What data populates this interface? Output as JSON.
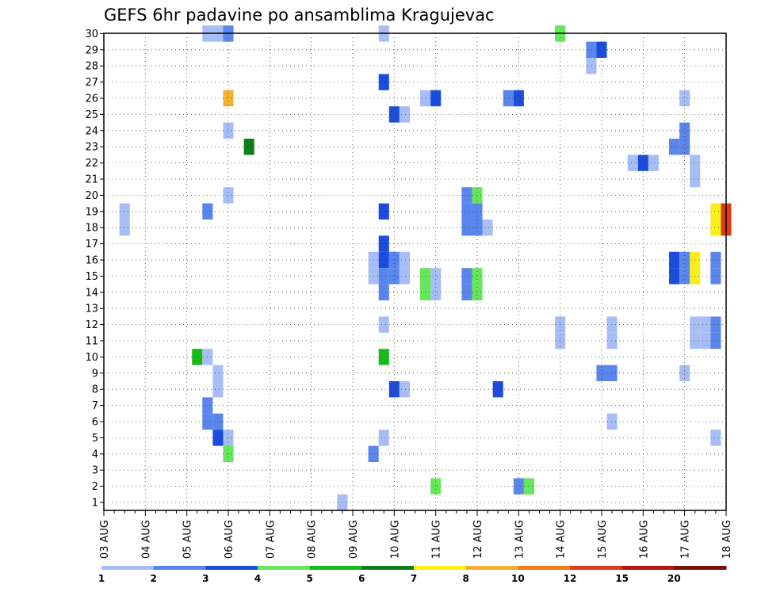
{
  "chart_data": {
    "type": "heatmap",
    "title": "GEFS 6hr padavine po ansamblima Kragujevac",
    "xlabel": "",
    "ylabel": "",
    "x_unit": "6-hour step",
    "x_start": "2024-08-03T00:00",
    "x_end": "2024-08-18T00:00",
    "x_ticks": [
      {
        "step": 0,
        "label": "03 AUG"
      },
      {
        "step": 4,
        "label": "04 AUG"
      },
      {
        "step": 8,
        "label": "05 AUG"
      },
      {
        "step": 12,
        "label": "06 AUG"
      },
      {
        "step": 16,
        "label": "07 AUG"
      },
      {
        "step": 20,
        "label": "08 AUG"
      },
      {
        "step": 24,
        "label": "09 AUG"
      },
      {
        "step": 28,
        "label": "10 AUG"
      },
      {
        "step": 32,
        "label": "11 AUG"
      },
      {
        "step": 36,
        "label": "12 AUG"
      },
      {
        "step": 40,
        "label": "13 AUG"
      },
      {
        "step": 44,
        "label": "14 AUG"
      },
      {
        "step": 48,
        "label": "15 AUG"
      },
      {
        "step": 52,
        "label": "16 AUG"
      },
      {
        "step": 56,
        "label": "17 AUG"
      },
      {
        "step": 60,
        "label": "18 AUG"
      }
    ],
    "y_range": [
      1,
      30
    ],
    "y_ticks": [
      "1",
      "2",
      "3",
      "4",
      "5",
      "6",
      "7",
      "8",
      "9",
      "10",
      "11",
      "12",
      "13",
      "14",
      "15",
      "16",
      "17",
      "18",
      "19",
      "20",
      "21",
      "22",
      "23",
      "24",
      "25",
      "26",
      "27",
      "28",
      "29",
      "30"
    ],
    "grid": true,
    "legend": {
      "placement": "bottom",
      "labels": [
        "1",
        "2",
        "3",
        "4",
        "5",
        "6",
        "7",
        "8",
        "10",
        "12",
        "15",
        "20"
      ],
      "colors": [
        "#a6bdf5",
        "#5a85ec",
        "#1b4cdc",
        "#66e65a",
        "#17b91b",
        "#0d7d1a",
        "#f7ee1a",
        "#f6b02c",
        "#f07d18",
        "#dc3c14",
        "#b2170d",
        "#75120c"
      ]
    },
    "color_scale": [
      {
        "class": 1,
        "color": "#a6bdf5"
      },
      {
        "class": 2,
        "color": "#5a85ec"
      },
      {
        "class": 3,
        "color": "#1b4cdc"
      },
      {
        "class": 4,
        "color": "#66e65a"
      },
      {
        "class": 5,
        "color": "#17b91b"
      },
      {
        "class": 6,
        "color": "#0d7d1a"
      },
      {
        "class": 7,
        "color": "#f7ee1a"
      },
      {
        "class": 8,
        "color": "#f6b02c"
      },
      {
        "class": 9,
        "color": "#f07d18"
      },
      {
        "class": 10,
        "color": "#dc3c14"
      },
      {
        "class": 11,
        "color": "#b2170d"
      }
    ],
    "cells": [
      {
        "step": 10,
        "member": 30,
        "class": 1
      },
      {
        "step": 11,
        "member": 30,
        "class": 1
      },
      {
        "step": 12,
        "member": 30,
        "class": 2
      },
      {
        "step": 27,
        "member": 30,
        "class": 1
      },
      {
        "step": 44,
        "member": 30,
        "class": 4
      },
      {
        "step": 47,
        "member": 29,
        "class": 2
      },
      {
        "step": 48,
        "member": 29,
        "class": 3
      },
      {
        "step": 47,
        "member": 28,
        "class": 1
      },
      {
        "step": 27,
        "member": 27,
        "class": 3
      },
      {
        "step": 12,
        "member": 26,
        "class": 8
      },
      {
        "step": 31,
        "member": 26,
        "class": 1
      },
      {
        "step": 32,
        "member": 26,
        "class": 3
      },
      {
        "step": 39,
        "member": 26,
        "class": 2
      },
      {
        "step": 40,
        "member": 26,
        "class": 3
      },
      {
        "step": 56,
        "member": 26,
        "class": 1
      },
      {
        "step": 28,
        "member": 25,
        "class": 3
      },
      {
        "step": 29,
        "member": 25,
        "class": 1
      },
      {
        "step": 12,
        "member": 24,
        "class": 1
      },
      {
        "step": 56,
        "member": 24,
        "class": 2
      },
      {
        "step": 14,
        "member": 23,
        "class": 6
      },
      {
        "step": 55,
        "member": 23,
        "class": 2
      },
      {
        "step": 56,
        "member": 23,
        "class": 2
      },
      {
        "step": 51,
        "member": 22,
        "class": 1
      },
      {
        "step": 52,
        "member": 22,
        "class": 3
      },
      {
        "step": 53,
        "member": 22,
        "class": 1
      },
      {
        "step": 57,
        "member": 22,
        "class": 1
      },
      {
        "step": 57,
        "member": 21,
        "class": 1
      },
      {
        "step": 12,
        "member": 20,
        "class": 1
      },
      {
        "step": 35,
        "member": 20,
        "class": 2
      },
      {
        "step": 36,
        "member": 20,
        "class": 4
      },
      {
        "step": 2,
        "member": 19,
        "class": 1
      },
      {
        "step": 10,
        "member": 19,
        "class": 2
      },
      {
        "step": 27,
        "member": 19,
        "class": 3
      },
      {
        "step": 35,
        "member": 19,
        "class": 2
      },
      {
        "step": 36,
        "member": 19,
        "class": 2
      },
      {
        "step": 59,
        "member": 19,
        "class": 7
      },
      {
        "step": 60,
        "member": 19,
        "class": 10
      },
      {
        "step": 2,
        "member": 18,
        "class": 1
      },
      {
        "step": 35,
        "member": 18,
        "class": 2
      },
      {
        "step": 36,
        "member": 18,
        "class": 2
      },
      {
        "step": 37,
        "member": 18,
        "class": 1
      },
      {
        "step": 59,
        "member": 18,
        "class": 7
      },
      {
        "step": 60,
        "member": 18,
        "class": 10
      },
      {
        "step": 27,
        "member": 17,
        "class": 3
      },
      {
        "step": 26,
        "member": 16,
        "class": 1
      },
      {
        "step": 27,
        "member": 16,
        "class": 3
      },
      {
        "step": 28,
        "member": 16,
        "class": 2
      },
      {
        "step": 29,
        "member": 16,
        "class": 1
      },
      {
        "step": 55,
        "member": 16,
        "class": 3
      },
      {
        "step": 56,
        "member": 16,
        "class": 2
      },
      {
        "step": 57,
        "member": 16,
        "class": 7
      },
      {
        "step": 59,
        "member": 16,
        "class": 2
      },
      {
        "step": 26,
        "member": 15,
        "class": 1
      },
      {
        "step": 27,
        "member": 15,
        "class": 2
      },
      {
        "step": 28,
        "member": 15,
        "class": 2
      },
      {
        "step": 29,
        "member": 15,
        "class": 1
      },
      {
        "step": 55,
        "member": 15,
        "class": 3
      },
      {
        "step": 56,
        "member": 15,
        "class": 2
      },
      {
        "step": 57,
        "member": 15,
        "class": 7
      },
      {
        "step": 59,
        "member": 15,
        "class": 2
      },
      {
        "step": 31,
        "member": 15,
        "class": 4
      },
      {
        "step": 32,
        "member": 15,
        "class": 1
      },
      {
        "step": 35,
        "member": 15,
        "class": 2
      },
      {
        "step": 36,
        "member": 15,
        "class": 4
      },
      {
        "step": 27,
        "member": 14,
        "class": 2
      },
      {
        "step": 31,
        "member": 14,
        "class": 4
      },
      {
        "step": 32,
        "member": 14,
        "class": 1
      },
      {
        "step": 35,
        "member": 14,
        "class": 2
      },
      {
        "step": 36,
        "member": 14,
        "class": 4
      },
      {
        "step": 27,
        "member": 12,
        "class": 1
      },
      {
        "step": 44,
        "member": 11,
        "class": 1
      },
      {
        "step": 49,
        "member": 11,
        "class": 1
      },
      {
        "step": 57,
        "member": 11,
        "class": 1
      },
      {
        "step": 58,
        "member": 11,
        "class": 1
      },
      {
        "step": 59,
        "member": 11,
        "class": 2
      },
      {
        "step": 44,
        "member": 12,
        "class": 1
      },
      {
        "step": 49,
        "member": 12,
        "class": 1
      },
      {
        "step": 57,
        "member": 12,
        "class": 1
      },
      {
        "step": 58,
        "member": 12,
        "class": 1
      },
      {
        "step": 59,
        "member": 12,
        "class": 2
      },
      {
        "step": 9,
        "member": 10,
        "class": 5
      },
      {
        "step": 10,
        "member": 10,
        "class": 1
      },
      {
        "step": 27,
        "member": 10,
        "class": 5
      },
      {
        "step": 11,
        "member": 9,
        "class": 1
      },
      {
        "step": 48,
        "member": 9,
        "class": 2
      },
      {
        "step": 49,
        "member": 9,
        "class": 2
      },
      {
        "step": 56,
        "member": 9,
        "class": 1
      },
      {
        "step": 11,
        "member": 8,
        "class": 1
      },
      {
        "step": 28,
        "member": 8,
        "class": 3
      },
      {
        "step": 29,
        "member": 8,
        "class": 1
      },
      {
        "step": 38,
        "member": 8,
        "class": 3
      },
      {
        "step": 10,
        "member": 7,
        "class": 2
      },
      {
        "step": 10,
        "member": 6,
        "class": 2
      },
      {
        "step": 11,
        "member": 6,
        "class": 2
      },
      {
        "step": 49,
        "member": 6,
        "class": 1
      },
      {
        "step": 11,
        "member": 5,
        "class": 3
      },
      {
        "step": 12,
        "member": 5,
        "class": 1
      },
      {
        "step": 27,
        "member": 5,
        "class": 1
      },
      {
        "step": 59,
        "member": 5,
        "class": 1
      },
      {
        "step": 12,
        "member": 4,
        "class": 4
      },
      {
        "step": 26,
        "member": 4,
        "class": 2
      },
      {
        "step": 32,
        "member": 2,
        "class": 4
      },
      {
        "step": 40,
        "member": 2,
        "class": 2
      },
      {
        "step": 41,
        "member": 2,
        "class": 4
      },
      {
        "step": 23,
        "member": 1,
        "class": 1
      }
    ]
  }
}
